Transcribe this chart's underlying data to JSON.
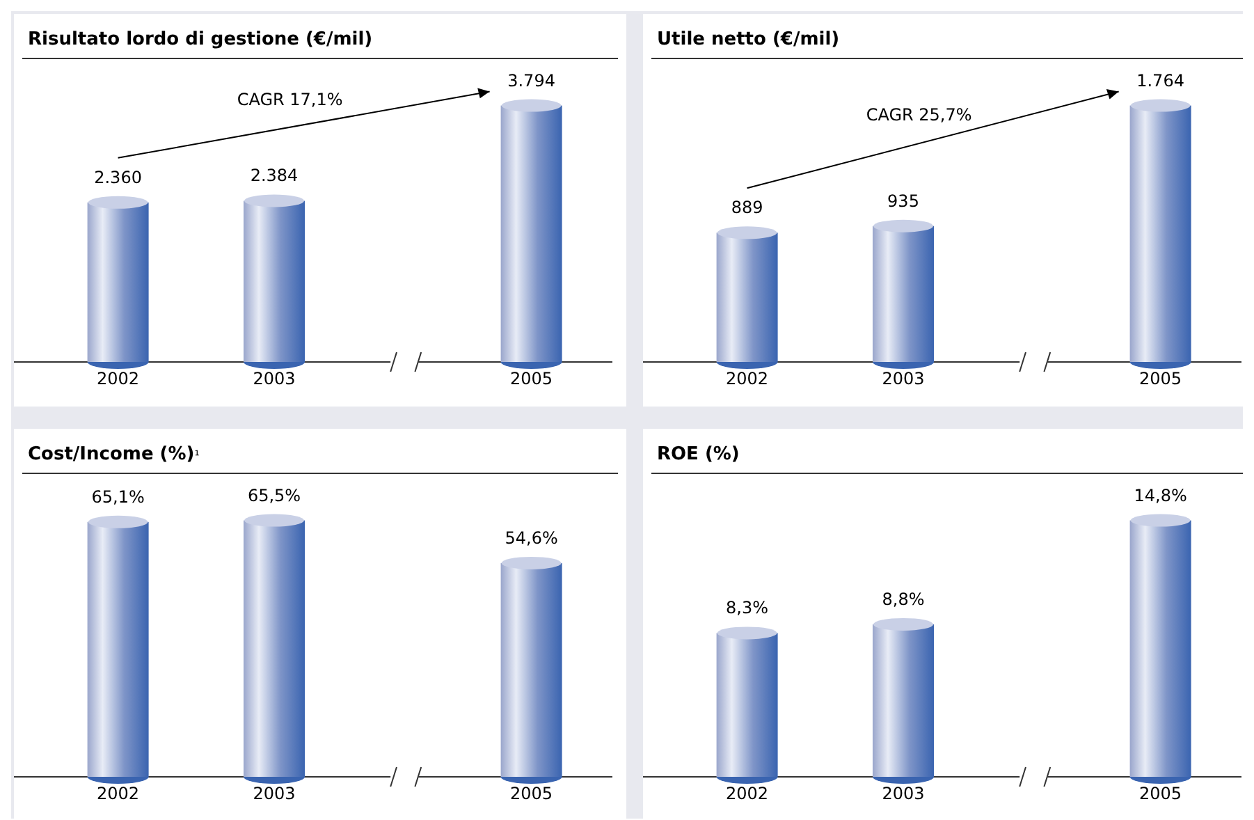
{
  "chart_data": [
    {
      "type": "bar",
      "title": "Risultato lordo di gestione (€/mil)",
      "categories": [
        "2002",
        "2003",
        "2005"
      ],
      "values": [
        2360,
        2384,
        3794
      ],
      "value_labels": [
        "2.360",
        "2.384",
        "3.794"
      ],
      "color": "#3a64b0",
      "annotations": [
        "CAGR 17,1%"
      ]
    },
    {
      "type": "bar",
      "title": "Utile netto (€/mil)",
      "categories": [
        "2002",
        "2003",
        "2005"
      ],
      "values": [
        889,
        935,
        1764
      ],
      "value_labels": [
        "889",
        "935",
        "1.764"
      ],
      "color": "#3a64b0",
      "annotations": [
        "CAGR 25,7%"
      ]
    },
    {
      "type": "bar",
      "title": "Cost/Income (%)¹",
      "categories": [
        "2002",
        "2003",
        "2005"
      ],
      "values": [
        65.1,
        65.5,
        54.6
      ],
      "value_labels": [
        "65,1%",
        "65,5%",
        "54,6%"
      ],
      "color": "#3a64b0"
    },
    {
      "type": "bar",
      "title": "ROE (%)",
      "categories": [
        "2002",
        "2003",
        "2005"
      ],
      "values": [
        8.3,
        8.8,
        14.8
      ],
      "value_labels": [
        "8,3%",
        "8,8%",
        "14,8%"
      ],
      "color": "#3a64b0"
    }
  ]
}
